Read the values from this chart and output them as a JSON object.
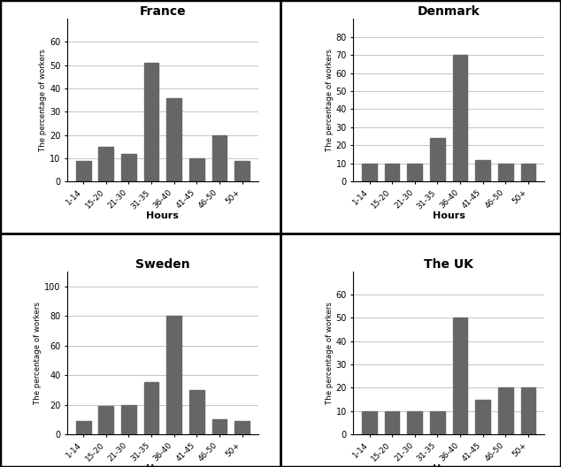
{
  "categories": [
    "1-14",
    "15-20",
    "21-30",
    "31-35",
    "36-40",
    "41-45",
    "46-50",
    "50+"
  ],
  "charts": [
    {
      "title": "France",
      "values": [
        9,
        15,
        12,
        51,
        36,
        10,
        20,
        9
      ],
      "ylim": [
        0,
        70
      ],
      "yticks": [
        0,
        10,
        20,
        30,
        40,
        50,
        60
      ]
    },
    {
      "title": "Denmark",
      "values": [
        10,
        10,
        10,
        24,
        70,
        12,
        10,
        10
      ],
      "ylim": [
        0,
        90
      ],
      "yticks": [
        0,
        10,
        20,
        30,
        40,
        50,
        60,
        70,
        80
      ]
    },
    {
      "title": "Sweden",
      "values": [
        9,
        19,
        20,
        35,
        80,
        30,
        10,
        9
      ],
      "ylim": [
        0,
        110
      ],
      "yticks": [
        0,
        20,
        40,
        60,
        80,
        100
      ]
    },
    {
      "title": "The UK",
      "values": [
        10,
        10,
        10,
        10,
        50,
        15,
        20,
        20
      ],
      "ylim": [
        0,
        70
      ],
      "yticks": [
        0,
        10,
        20,
        30,
        40,
        50,
        60
      ]
    }
  ],
  "bar_color": "#666666",
  "ylabel": "The percentage of workers",
  "xlabel": "Hours",
  "background_color": "#ffffff",
  "grid_color": "#bbbbbb",
  "outer_border_color": "#000000",
  "divider_color": "#000000"
}
